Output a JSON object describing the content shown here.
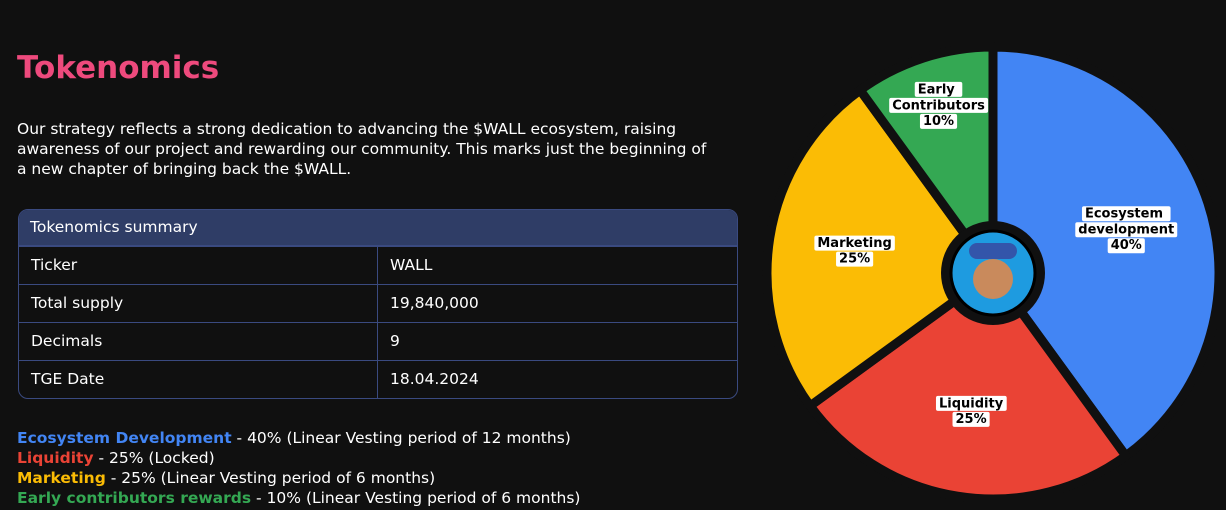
{
  "header": {
    "title": "Tokenomics",
    "description": "Our strategy reflects a strong dedication to advancing the $WALL ecosystem, raising awareness of our project and rewarding our community. This marks just the beginning of a new chapter of bringing back the $WALL."
  },
  "table": {
    "caption": "Tokenomics summary",
    "rows": [
      [
        "Ticker",
        "WALL"
      ],
      [
        "Total supply",
        "19,840,000"
      ],
      [
        "Decimals",
        "9"
      ],
      [
        "TGE Date",
        "18.04.2024"
      ]
    ]
  },
  "allocations": [
    {
      "name": "Ecosystem Development",
      "detail": "- 40% (Linear Vesting period of 12 months)",
      "color": "#4285f4"
    },
    {
      "name": "Liquidity",
      "detail": "- 25% (Locked)",
      "color": "#ea4335"
    },
    {
      "name": "Marketing",
      "detail": "- 25% (Linear Vesting period of 6 months)",
      "color": "#fbbc05"
    },
    {
      "name": "Early contributors rewards",
      "detail": "- 10% (Linear Vesting period of 6 months)",
      "color": "#34a853"
    }
  ],
  "chart_data": {
    "type": "pie",
    "categories": [
      "Ecosystem development",
      "Liquidity",
      "Marketing",
      "Early Contributors"
    ],
    "values": [
      40,
      25,
      25,
      10
    ],
    "value_labels": [
      "40%",
      "25%",
      "25%",
      "10%"
    ],
    "colors": [
      "#4285f4",
      "#ea4335",
      "#fbbc05",
      "#34a853"
    ]
  }
}
